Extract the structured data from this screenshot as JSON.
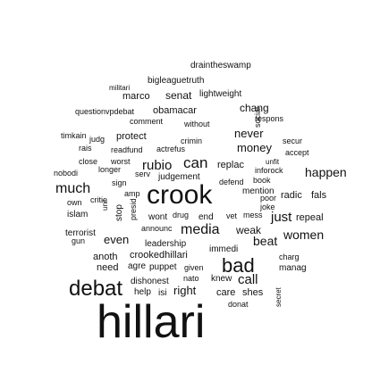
{
  "cloud": {
    "text_color": "#111111",
    "words": [
      "draintheswamp",
      "bigleaguetruth",
      "militari",
      "marco",
      "senat",
      "lightweight",
      "obamacar",
      "chang",
      "questionvpdebat",
      "comment",
      "without",
      "respons",
      "timkain",
      "judg",
      "protect",
      "crimin",
      "never",
      "secur",
      "rais",
      "readfund",
      "actrefus",
      "money",
      "accept",
      "close",
      "worst",
      "rubio",
      "can",
      "replac",
      "unfit",
      "inforock",
      "nobodi",
      "longer",
      "serv",
      "judgement",
      "defend",
      "book",
      "happen",
      "much",
      "sign",
      "crook",
      "mention",
      "own",
      "critic",
      "poor",
      "joke",
      "radic",
      "fals",
      "islam",
      "drug",
      "wont",
      "end",
      "vet",
      "mess",
      "just",
      "repeal",
      "terrorist",
      "announc",
      "media",
      "weak",
      "gun",
      "even",
      "leadership",
      "beat",
      "women",
      "immedi",
      "anoth",
      "crookedhillari",
      "charg",
      "need",
      "agre",
      "puppet",
      "given",
      "bad",
      "manag",
      "debat",
      "dishonest",
      "nato",
      "knew",
      "call",
      "help",
      "isi",
      "right",
      "care",
      "shes",
      "donat",
      "hillari",
      "social",
      "unit",
      "stop",
      "presid",
      "amp",
      "secret"
    ]
  }
}
